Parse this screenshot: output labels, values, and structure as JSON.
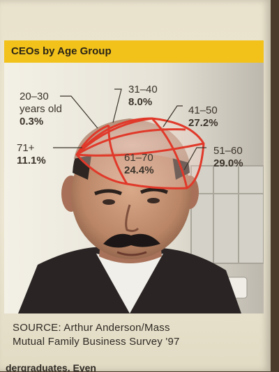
{
  "chart_data": {
    "type": "pie",
    "title": "CEOs by Age Group",
    "slices": [
      {
        "label": "20–30",
        "sublabel": "years old",
        "value": 0.3,
        "value_text": "0.3%"
      },
      {
        "label": "31–40",
        "value": 8.0,
        "value_text": "8.0%"
      },
      {
        "label": "41–50",
        "value": 27.2,
        "value_text": "27.2%"
      },
      {
        "label": "51–60",
        "value": 29.0,
        "value_text": "29.0%"
      },
      {
        "label": "61–70",
        "value": 24.4,
        "value_text": "24.4%"
      },
      {
        "label": "71+",
        "value": 11.1,
        "value_text": "11.1%"
      }
    ],
    "accent_color": "#e0392a",
    "title_bar_color": "#f2c21b"
  },
  "source": {
    "line1": "SOURCE: Arthur Anderson/Mass",
    "line2": "Mutual Family Business Survey '97"
  },
  "page_continuation": "dergraduates. Even"
}
